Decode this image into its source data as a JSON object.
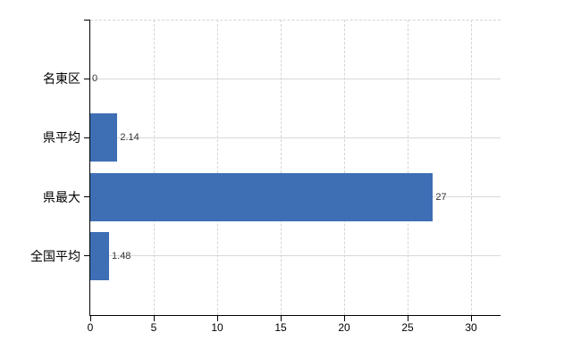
{
  "chart_data": {
    "type": "bar",
    "orientation": "horizontal",
    "title": "",
    "xlabel": "",
    "ylabel": "",
    "categories": [
      "名東区",
      "県平均",
      "県最大",
      "全国平均"
    ],
    "values": [
      0,
      2.14,
      27,
      1.48
    ],
    "value_labels": [
      "0",
      "2.14",
      "27",
      "1.48"
    ],
    "xticks": [
      0,
      5,
      10,
      15,
      20,
      25,
      30
    ],
    "xtick_labels": [
      "0",
      "5",
      "10",
      "15",
      "20",
      "25",
      "30"
    ],
    "xlim": [
      0,
      32.4
    ],
    "grid": true,
    "legend": false,
    "colors": {
      "bar": "#3e6fb5",
      "grid_horizontal": "#d8dad3",
      "grid_vertical": "#d6d3da",
      "axis": "#000000",
      "category_label": "#000000",
      "value_label": "#333333",
      "tick_label": "#000000",
      "background": "#ffffff"
    }
  }
}
